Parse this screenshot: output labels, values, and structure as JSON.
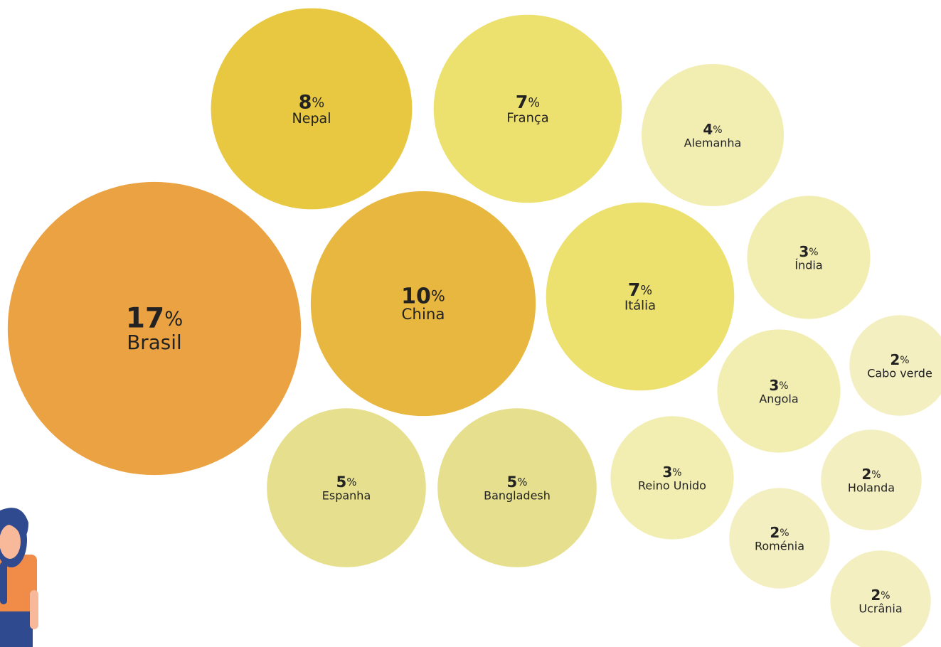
{
  "chart_data": {
    "type": "bubble",
    "unit": "%",
    "categories": [
      "Brasil",
      "China",
      "Nepal",
      "França",
      "Itália",
      "Espanha",
      "Bangladesh",
      "Alemanha",
      "Índia",
      "Angola",
      "Reino Unido",
      "Cabo verde",
      "Holanda",
      "Roménia",
      "Ucrânia"
    ],
    "values": [
      17,
      10,
      8,
      7,
      7,
      5,
      5,
      4,
      3,
      3,
      3,
      2,
      2,
      2,
      2
    ],
    "colors": [
      "#eba242",
      "#e8b73f",
      "#e8c840",
      "#ece06e",
      "#ece06e",
      "#e6e08e",
      "#e6e08e",
      "#f2eeb2",
      "#f2eeb2",
      "#f2eeb2",
      "#f2eeb2",
      "#f3efc0",
      "#f3efc0",
      "#f3efc0",
      "#f3efc0"
    ]
  }
}
